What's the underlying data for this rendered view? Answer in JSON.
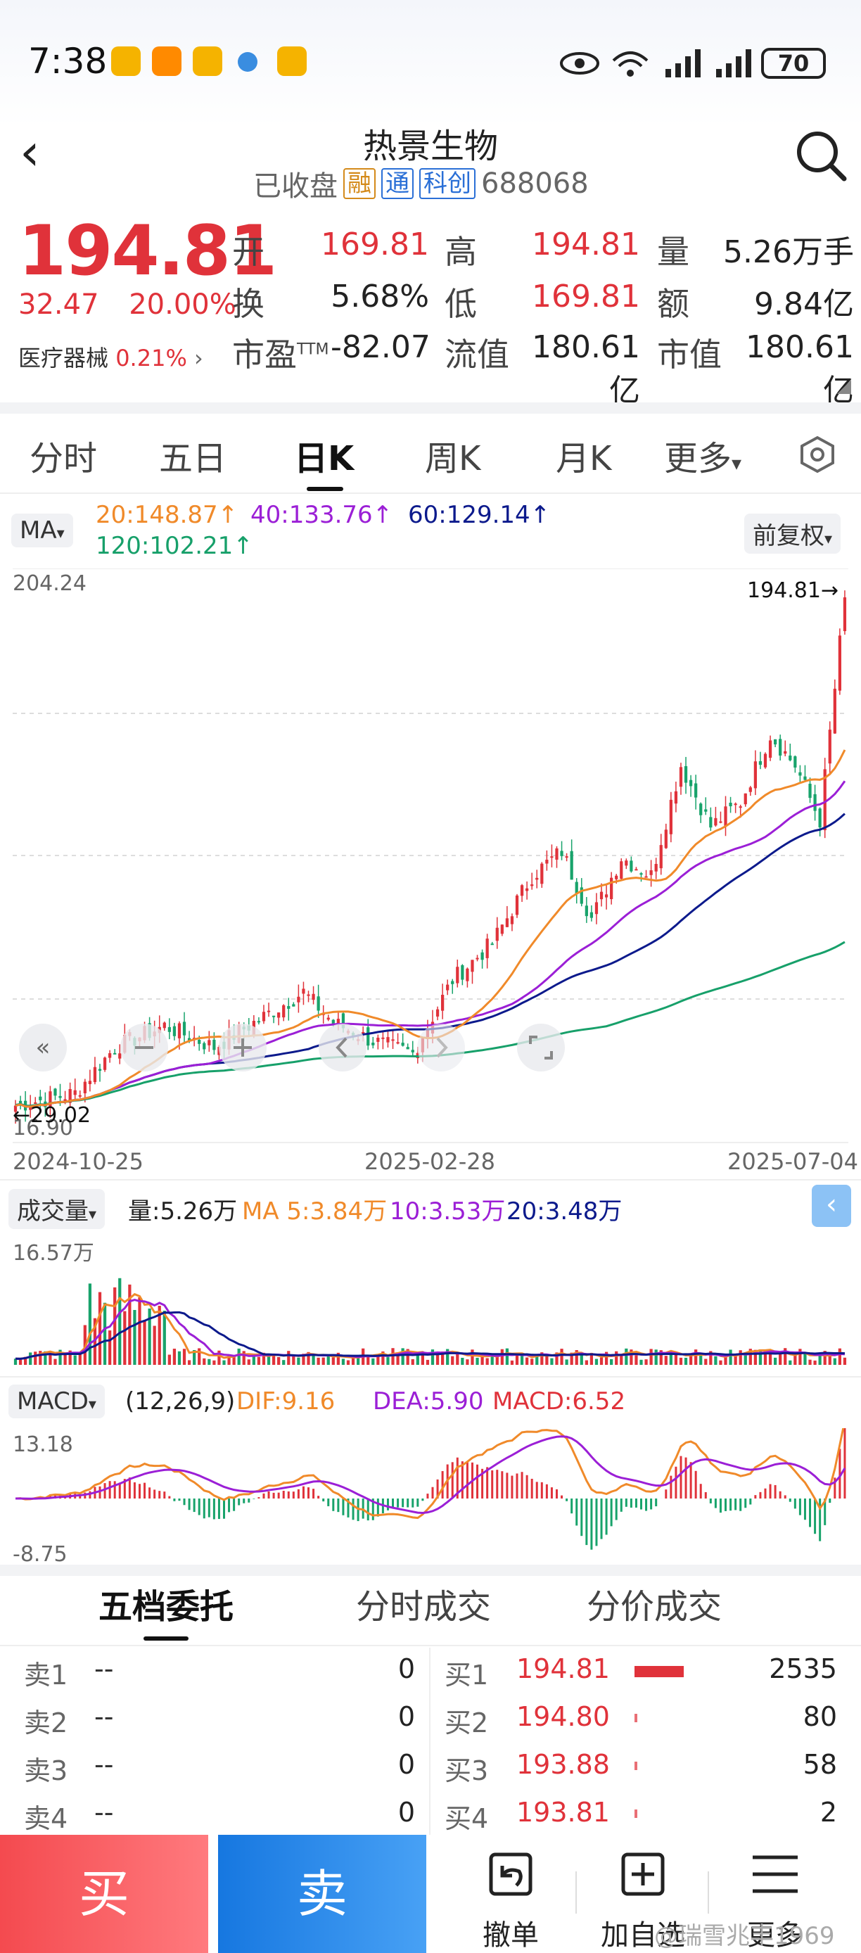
{
  "status_bar": {
    "time": "7:38",
    "battery": "70",
    "network": "6"
  },
  "header": {
    "title": "热景生物",
    "market_status": "已收盘",
    "tags": [
      "融",
      "通",
      "科创"
    ],
    "code": "688068"
  },
  "quote": {
    "price": "194.81",
    "change": "32.47",
    "change_pct": "20.00%",
    "sector": "医疗器械",
    "sector_pct": "0.21%",
    "open_label": "开",
    "open": "169.81",
    "high_label": "高",
    "high": "194.81",
    "volume_label": "量",
    "volume": "5.26万手",
    "turnover_label": "换",
    "turnover": "5.68%",
    "low_label": "低",
    "low": "169.81",
    "amount_label": "额",
    "amount": "9.84亿",
    "pe_label": "市盈",
    "pe_sup": "TTM",
    "pe": "-82.07",
    "float_cap_label": "流值",
    "float_cap": "180.61亿",
    "market_cap_label": "市值",
    "market_cap": "180.61亿"
  },
  "tabs": [
    "分时",
    "五日",
    "日K",
    "周K",
    "月K",
    "更多"
  ],
  "ma_bar": {
    "selector": "MA",
    "ma20": "20:148.87",
    "ma40": "40:133.76",
    "ma60": "60:129.14",
    "ma120": "120:102.21",
    "adjust": "前复权"
  },
  "kline": {
    "y_max": "204.24",
    "y_min": "16.90",
    "last_marker": "194.81",
    "low_marker": "29.02",
    "dates": [
      "2024-10-25",
      "2025-02-28",
      "2025-07-04"
    ]
  },
  "volume_bar": {
    "selector": "成交量",
    "vol": "量:5.26万",
    "ma5": "MA 5:3.84万",
    "ma10": "10:3.53万",
    "ma20": "20:3.48万",
    "max": "16.57万"
  },
  "macd_bar": {
    "selector": "MACD",
    "params": "(12,26,9)",
    "dif": "DIF:9.16",
    "dea": "DEA:5.90",
    "macd": "MACD:6.52",
    "max": "13.18",
    "min": "-8.75"
  },
  "colors": {
    "up": "#e0323a",
    "down": "#18a36b",
    "ma20": "#f08a2a",
    "ma40": "#9b1fd6",
    "ma60": "#0c1a8c",
    "ma120": "#17a06a"
  },
  "orderbook": {
    "tabs": [
      "五档委托",
      "分时成交",
      "分价成交"
    ],
    "sell": [
      {
        "label": "卖1",
        "price": "--",
        "qty": "0"
      },
      {
        "label": "卖2",
        "price": "--",
        "qty": "0"
      },
      {
        "label": "卖3",
        "price": "--",
        "qty": "0"
      },
      {
        "label": "卖4",
        "price": "--",
        "qty": "0"
      }
    ],
    "buy": [
      {
        "label": "买1",
        "price": "194.81",
        "qty": "2535",
        "bar": 1.0
      },
      {
        "label": "买2",
        "price": "194.80",
        "qty": "80",
        "bar": 0.03
      },
      {
        "label": "买3",
        "price": "193.88",
        "qty": "58",
        "bar": 0.02
      },
      {
        "label": "买4",
        "price": "193.81",
        "qty": "2",
        "bar": 0.01
      }
    ]
  },
  "bottom": {
    "buy": "买",
    "sell": "卖",
    "cancel": "撤单",
    "watch": "加自选",
    "more": "更多"
  },
  "watermark": "@瑞雪兆丰1969"
}
